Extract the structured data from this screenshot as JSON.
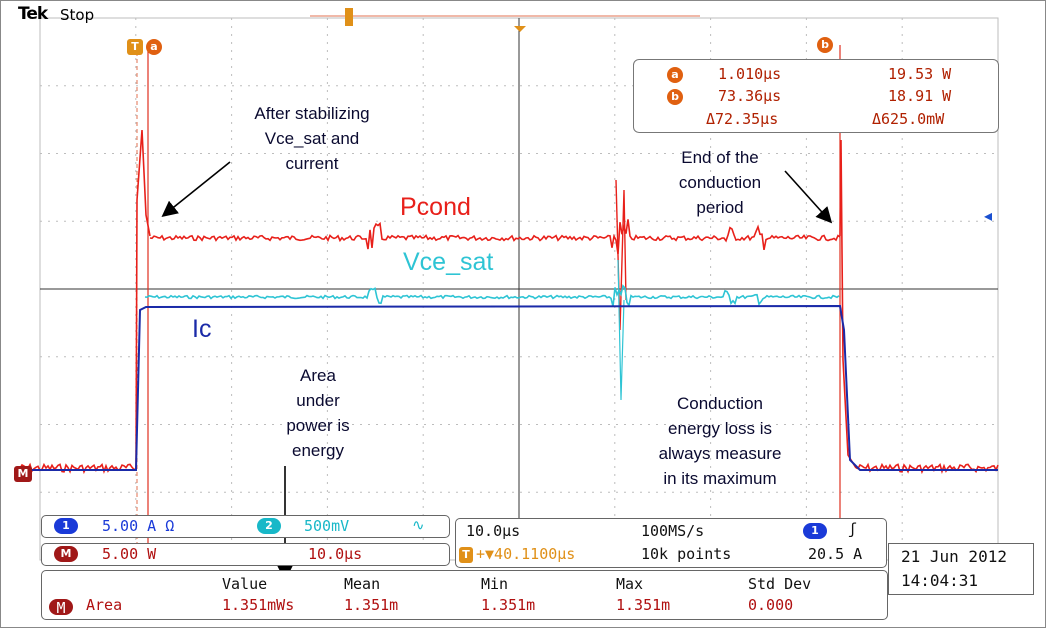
{
  "header": {
    "brand": "Tek",
    "run_state": "Stop"
  },
  "cursors": {
    "a_label": "a",
    "b_label": "b",
    "trigger_label": "T"
  },
  "readout": {
    "a_badge": "a",
    "a_time": "1.010µs",
    "a_value": "19.53 W",
    "b_badge": "b",
    "b_time": "73.36µs",
    "b_value": "18.91 W",
    "delta_time": "Δ72.35µs",
    "delta_value": "Δ625.0mW"
  },
  "annotations": {
    "stabilizing": [
      "After stabilizing",
      "Vce_sat and",
      "current"
    ],
    "end_period": [
      "End of the",
      "conduction",
      "period"
    ],
    "area": [
      "Area",
      "under",
      "power is",
      "energy"
    ],
    "conduction_loss": [
      "Conduction",
      "energy loss is",
      "always measure",
      "in its maximum"
    ]
  },
  "trace_labels": {
    "pcond": "Pcond",
    "vce_sat": "Vce_sat",
    "ic": "Ic"
  },
  "channels": {
    "ch1": {
      "badge": "1",
      "scale": "5.00 A Ω"
    },
    "ch2": {
      "badge": "2",
      "scale": "500mV"
    },
    "math": {
      "badge": "M",
      "scale": "5.00 W",
      "time": "10.0µs"
    }
  },
  "timebase": {
    "horizontal": "10.0µs",
    "sample_rate": "100MS/s",
    "trigger_pos": "+▼40.1100µs",
    "record_length": "10k points",
    "trigger_source": "1",
    "trigger_level": "20.5 A"
  },
  "date": {
    "date": "21 Jun 2012",
    "time": "14:04:31"
  },
  "measurements": {
    "headers": [
      "Value",
      "Mean",
      "Min",
      "Max",
      "Std Dev"
    ],
    "row": {
      "badge": "M",
      "name": "Area",
      "value": "1.351mWs",
      "mean": "1.351m",
      "min": "1.351m",
      "max": "1.351m",
      "std_dev": "0.000"
    }
  },
  "colors": {
    "pcond": "#e8201a",
    "vce_sat": "#2ec4d4",
    "ic": "#1a2aa8",
    "grid": "#bdbdbd",
    "accent": "#e06010"
  }
}
